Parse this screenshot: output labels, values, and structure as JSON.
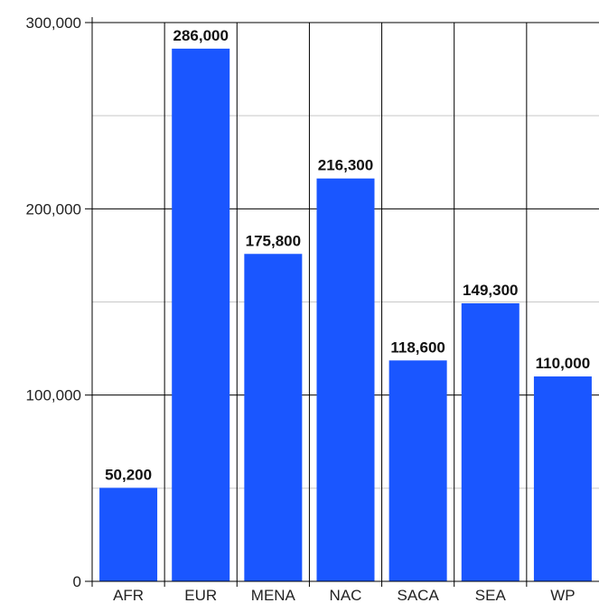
{
  "chart_data": {
    "type": "bar",
    "title": "",
    "xlabel": "",
    "ylabel": "",
    "categories": [
      "AFR",
      "EUR",
      "MENA",
      "NAC",
      "SACA",
      "SEA",
      "WP"
    ],
    "values": [
      50200,
      286000,
      175800,
      216300,
      118600,
      149300,
      110000
    ],
    "data_labels": [
      "50,200",
      "286,000",
      "175,800",
      "216,300",
      "118,600",
      "149,300",
      "110,000"
    ],
    "ylim": [
      0,
      300000
    ],
    "y_ticks": [
      0,
      100000,
      200000,
      300000
    ],
    "y_tick_labels": [
      "0",
      "100,000",
      "200,000",
      "300,000"
    ],
    "y_minor_gridlines": [
      50000,
      150000,
      250000
    ],
    "grid": true,
    "legend": "none",
    "colors": {
      "bar": "#1a56ff",
      "major_grid": "#000000",
      "minor_grid": "#c8c8c8",
      "axis": "#000000"
    }
  }
}
